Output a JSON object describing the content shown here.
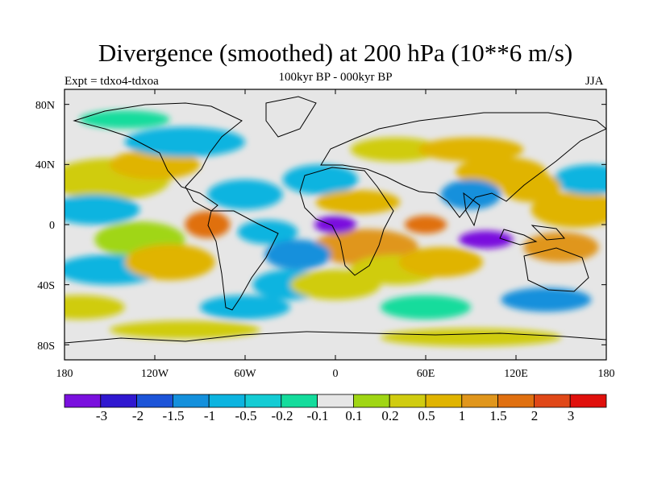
{
  "figure": {
    "title": "Divergence (smoothed) at 200 hPa (10**6 m/s)",
    "subtitle": "100kyr BP - 000kyr BP",
    "left_label": "Expt = tdxo4-tdxoa",
    "right_label": "JJA"
  },
  "axes": {
    "lat_ticks": [
      "80N",
      "40N",
      "0",
      "40S",
      "80S"
    ],
    "lon_ticks": [
      "180",
      "120W",
      "60W",
      "0",
      "60E",
      "120E",
      "180"
    ]
  },
  "colorbar": {
    "colors": [
      "#7a10de",
      "#3018d0",
      "#1c54d8",
      "#1490dc",
      "#0cb4e0",
      "#14ccd4",
      "#14dc9c",
      "#e6e6e6",
      "#a0d614",
      "#d0cc10",
      "#e0b400",
      "#e0961c",
      "#e07010",
      "#e04818",
      "#e0100c"
    ],
    "labels": [
      "-3",
      "-2",
      "-1.5",
      "-1",
      "-0.5",
      "-0.2",
      "-0.1",
      "0.1",
      "0.2",
      "0.5",
      "1",
      "1.5",
      "2",
      "3"
    ]
  },
  "chart_data": {
    "type": "heatmap",
    "title": "Divergence (smoothed) at 200 hPa (10**6 m/s)",
    "subtitle": "100kyr BP - 000kyr BP",
    "lon_range": [
      -180,
      180
    ],
    "lat_range": [
      -90,
      90
    ],
    "levels": [
      -3,
      -2,
      -1.5,
      -1,
      -0.5,
      -0.2,
      -0.1,
      0.1,
      0.2,
      0.5,
      1,
      1.5,
      2,
      3
    ],
    "features": [
      {
        "region": "equatorial Atlantic near 0E, 0N",
        "value": -3
      },
      {
        "region": "Maritime Continent near 100E, 10S",
        "value": -3
      },
      {
        "region": "tropical eastern Pacific near 85W, 0N",
        "value": 2
      },
      {
        "region": "equatorial East Africa near 60E, 0N",
        "value": 2
      },
      {
        "region": "tropical Atlantic / Africa near 15E, 15N",
        "value": 1
      },
      {
        "region": "South Indian Ocean near 70E, 25S",
        "value": 1
      },
      {
        "region": "Western Pacific near 130E, 25N",
        "value": 1
      },
      {
        "region": "tropical Atlantic near 25W, 20S",
        "value": -1
      }
    ]
  }
}
